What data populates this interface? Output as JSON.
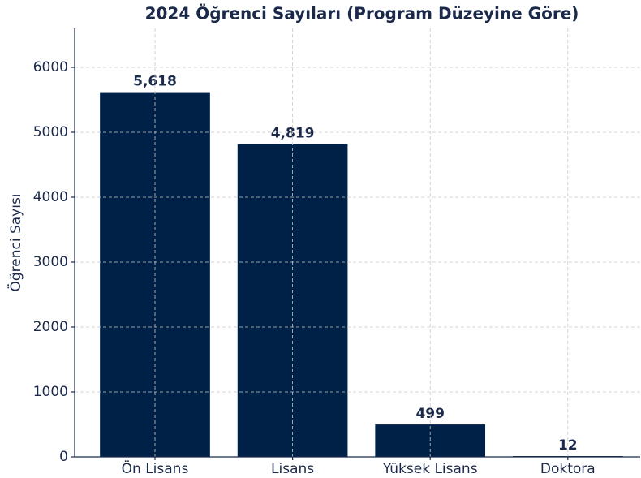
{
  "chart_data": {
    "type": "bar",
    "title": "2024 Öğrenci Sayıları (Program Düzeyine Göre)",
    "y_label": "Öğrenci Sayısı",
    "categories": [
      "Ön Lisans",
      "Lisans",
      "Yüksek Lisans",
      "Doktora"
    ],
    "values": [
      5618,
      4819,
      499,
      12
    ],
    "value_labels": [
      "5,618",
      "4,819",
      "499",
      "12"
    ],
    "color": "#002147",
    "ylim": [
      0,
      6600
    ],
    "yticks": [
      0,
      1000,
      2000,
      3000,
      4000,
      5000,
      6000
    ],
    "grid": true
  }
}
